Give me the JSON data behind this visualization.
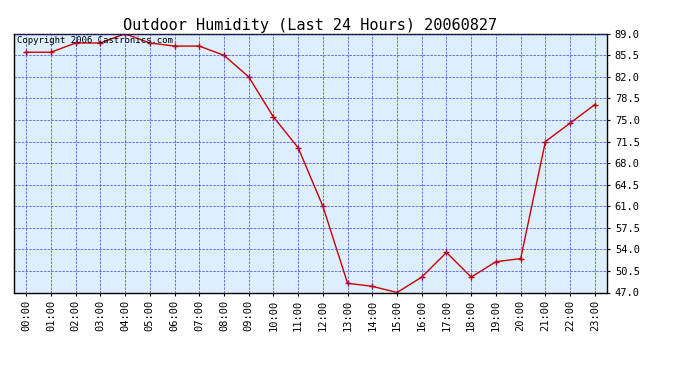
{
  "title": "Outdoor Humidity (Last 24 Hours) 20060827",
  "copyright_text": "Copyright 2006 Castronics.com",
  "x_labels": [
    "00:00",
    "01:00",
    "02:00",
    "03:00",
    "04:00",
    "05:00",
    "06:00",
    "07:00",
    "08:00",
    "09:00",
    "10:00",
    "11:00",
    "12:00",
    "13:00",
    "14:00",
    "15:00",
    "16:00",
    "17:00",
    "18:00",
    "19:00",
    "20:00",
    "21:00",
    "22:00",
    "23:00"
  ],
  "y_values": [
    86.0,
    86.0,
    87.5,
    87.5,
    89.0,
    87.5,
    87.0,
    87.0,
    85.5,
    82.0,
    75.5,
    70.5,
    61.0,
    48.5,
    48.0,
    47.0,
    49.5,
    53.5,
    49.5,
    52.0,
    52.5,
    71.5,
    74.5,
    77.5
  ],
  "line_color": "#cc0000",
  "marker_color": "#cc0000",
  "plot_bg_color": "#ddeeff",
  "outer_bg_color": "#ffffff",
  "grid_color": "#3333cc",
  "y_min": 47.0,
  "y_max": 89.0,
  "y_ticks": [
    47.0,
    50.5,
    54.0,
    57.5,
    61.0,
    64.5,
    68.0,
    71.5,
    75.0,
    78.5,
    82.0,
    85.5,
    89.0
  ],
  "title_fontsize": 11,
  "tick_fontsize": 7.5,
  "copyright_fontsize": 6.5
}
